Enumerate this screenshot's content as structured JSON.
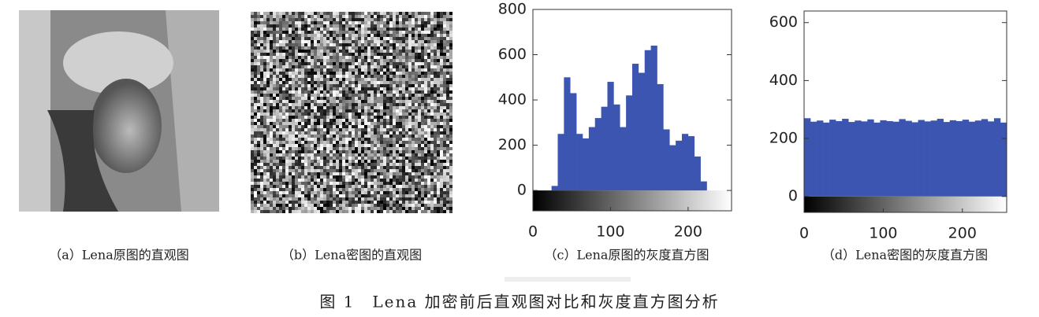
{
  "panels": [
    {
      "caption": "（a）Lena原图的直观图"
    },
    {
      "caption": "（b）Lena密图的直观图"
    }
  ],
  "chart_data": [
    {
      "type": "histogram",
      "caption": "（c）Lena原图的灰度直方图",
      "color": "#3b55b0",
      "bins": [
        0,
        8,
        16,
        24,
        32,
        40,
        48,
        56,
        64,
        72,
        80,
        88,
        96,
        104,
        112,
        120,
        128,
        136,
        144,
        152,
        160,
        168,
        176,
        184,
        192,
        200,
        208,
        216,
        224,
        232,
        240,
        248,
        256
      ],
      "values": [
        0,
        0,
        0,
        20,
        250,
        500,
        430,
        250,
        230,
        280,
        320,
        370,
        480,
        380,
        280,
        420,
        560,
        520,
        620,
        640,
        470,
        270,
        200,
        220,
        250,
        240,
        150,
        40,
        0,
        0,
        0,
        0
      ],
      "xlim": [
        0,
        256
      ],
      "xticks": [
        0,
        100,
        200
      ],
      "ylim": [
        -90,
        800
      ],
      "yticks": [
        0,
        200,
        400,
        600,
        800
      ]
    },
    {
      "type": "histogram",
      "caption": "（d）Lena密图的灰度直方图",
      "color": "#3b55b0",
      "bins": [
        0,
        8,
        16,
        24,
        32,
        40,
        48,
        56,
        64,
        72,
        80,
        88,
        96,
        104,
        112,
        120,
        128,
        136,
        144,
        152,
        160,
        168,
        176,
        184,
        192,
        200,
        208,
        216,
        224,
        232,
        240,
        248,
        256
      ],
      "values": [
        270,
        258,
        262,
        255,
        265,
        260,
        268,
        257,
        262,
        259,
        266,
        255,
        263,
        260,
        258,
        267,
        261,
        256,
        264,
        259,
        262,
        268,
        257,
        263,
        260,
        265,
        258,
        262,
        267,
        259,
        270,
        255
      ],
      "xlim": [
        0,
        256
      ],
      "xticks": [
        0,
        100,
        200
      ],
      "ylim": [
        -55,
        640
      ],
      "yticks": [
        0,
        200,
        400,
        600
      ]
    }
  ],
  "figure_caption": "图 1　Lena 加密前后直观图对比和灰度直方图分析"
}
